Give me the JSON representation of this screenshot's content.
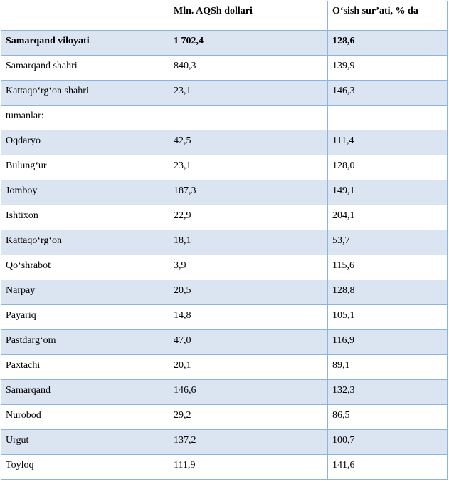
{
  "header": {
    "col1": "",
    "col2": "Mln. AQSh dollari",
    "col3": "O‘sish sur’ati, % da"
  },
  "rows": [
    {
      "name": "Samarqand  viloyati",
      "value": "1 702,4",
      "growth": "128,6",
      "bold": true,
      "shade": true
    },
    {
      "name": "Samarqand  shahri",
      "value": "840,3",
      "growth": "139,9",
      "bold": false,
      "shade": false
    },
    {
      "name": "Kattaqo‘rg‘on  shahri",
      "value": "23,1",
      "growth": "146,3",
      "bold": false,
      "shade": true
    },
    {
      "name": " tumanlar:",
      "value": "",
      "growth": "",
      "bold": false,
      "shade": false
    },
    {
      "name": "Oqdaryo",
      "value": "42,5",
      "growth": "111,4",
      "bold": false,
      "shade": true
    },
    {
      "name": "Bulung‘ur",
      "value": "23,1",
      "growth": "128,0",
      "bold": false,
      "shade": false
    },
    {
      "name": "Jomboy",
      "value": "187,3",
      "growth": "149,1",
      "bold": false,
      "shade": true
    },
    {
      "name": "Ishtixon",
      "value": "22,9",
      "growth": "204,1",
      "bold": false,
      "shade": false
    },
    {
      "name": "Kattaqo‘rg‘on",
      "value": "18,1",
      "growth": "53,7",
      "bold": false,
      "shade": true
    },
    {
      "name": "Qo‘shrabot",
      "value": "3,9",
      "growth": "115,6",
      "bold": false,
      "shade": false
    },
    {
      "name": "Narpay",
      "value": "20,5",
      "growth": "128,8",
      "bold": false,
      "shade": true
    },
    {
      "name": "Payariq",
      "value": "14,8",
      "growth": "105,1",
      "bold": false,
      "shade": false
    },
    {
      "name": "Pastdarg‘om",
      "value": "47,0",
      "growth": "116,9",
      "bold": false,
      "shade": true
    },
    {
      "name": "Paxtachi",
      "value": "20,1",
      "growth": "89,1",
      "bold": false,
      "shade": false
    },
    {
      "name": "Samarqand",
      "value": "146,6",
      "growth": "132,3",
      "bold": false,
      "shade": true
    },
    {
      "name": "Nurobod",
      "value": "29,2",
      "growth": "86,5",
      "bold": false,
      "shade": false
    },
    {
      "name": "Urgut",
      "value": "137,2",
      "growth": "100,7",
      "bold": false,
      "shade": true
    },
    {
      "name": "Toyloq",
      "value": "111,9",
      "growth": "141,6",
      "bold": false,
      "shade": false
    }
  ],
  "colors": {
    "border": "#8db3e2",
    "row_shade": "#dbe5f1"
  }
}
